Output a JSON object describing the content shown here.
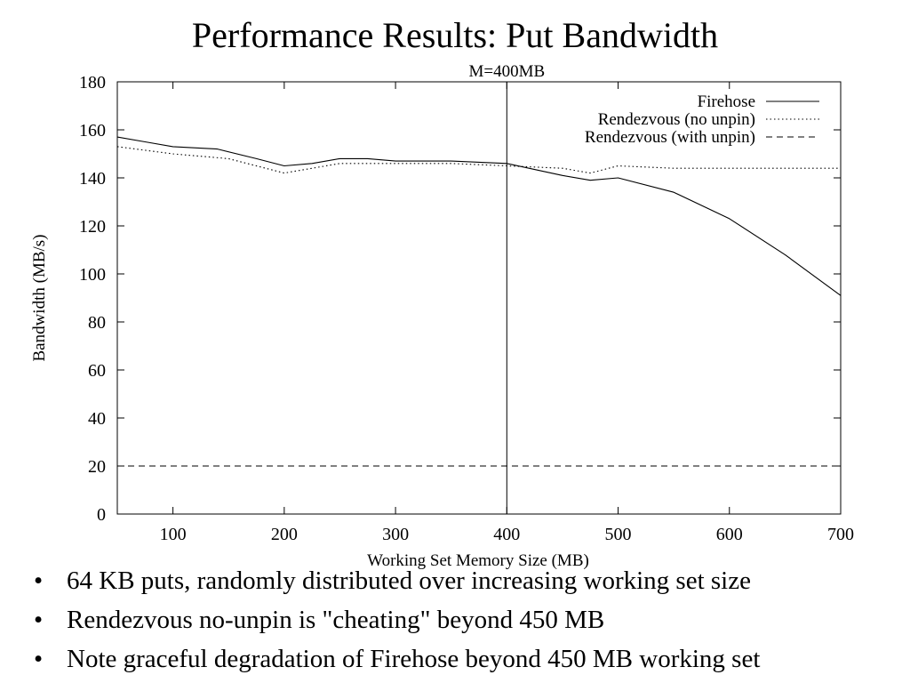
{
  "slide": {
    "title": "Performance Results: Put Bandwidth",
    "bullets": [
      "64 KB puts, randomly distributed over increasing working set size",
      "Rendezvous no-unpin is \"cheating\" beyond 450 MB",
      "Note graceful degradation of Firehose beyond 450 MB working set"
    ]
  },
  "chart_data": {
    "type": "line",
    "title": "",
    "xlabel": "Working Set Memory Size (MB)",
    "ylabel": "Bandwidth (MB/s)",
    "xlim": [
      50,
      700
    ],
    "ylim": [
      0,
      180
    ],
    "xticks": [
      100,
      200,
      300,
      400,
      500,
      600,
      700
    ],
    "yticks": [
      0,
      20,
      40,
      60,
      80,
      100,
      120,
      140,
      160,
      180
    ],
    "grid": false,
    "legend": "top-right",
    "annotations": [
      {
        "type": "vline",
        "x": 400,
        "label": "M=400MB"
      }
    ],
    "series": [
      {
        "name": "Firehose",
        "style": "solid",
        "x": [
          50,
          75,
          100,
          140,
          175,
          200,
          225,
          250,
          275,
          300,
          350,
          400,
          450,
          475,
          500,
          550,
          600,
          650,
          700
        ],
        "y": [
          157,
          155,
          153,
          152,
          148,
          145,
          146,
          148,
          148,
          147,
          147,
          146,
          141,
          139,
          140,
          134,
          123,
          108,
          91
        ]
      },
      {
        "name": "Rendezvous (no unpin)",
        "style": "dotted",
        "x": [
          50,
          100,
          150,
          200,
          225,
          250,
          300,
          350,
          400,
          450,
          475,
          500,
          550,
          600,
          650,
          700
        ],
        "y": [
          153,
          150,
          148,
          142,
          144,
          146,
          146,
          146,
          145,
          144,
          142,
          145,
          144,
          144,
          144,
          144
        ]
      },
      {
        "name": "Rendezvous (with unpin)",
        "style": "dashed",
        "x": [
          50,
          700
        ],
        "y": [
          20,
          20
        ]
      }
    ]
  }
}
